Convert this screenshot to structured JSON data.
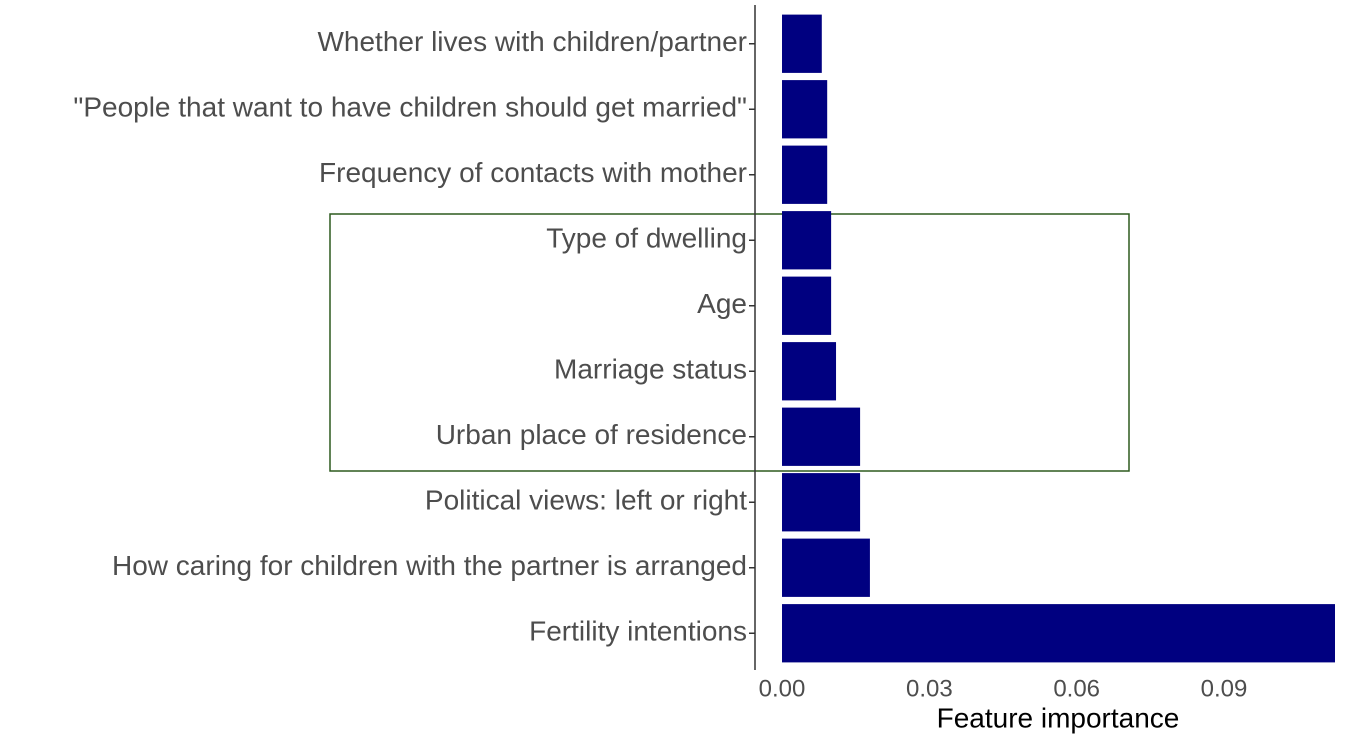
{
  "chart_data": {
    "type": "bar",
    "orientation": "horizontal",
    "x_label": "Feature importance",
    "categories": [
      "Whether lives with children/partner",
      "\"People that want to have children should get married\"",
      "Frequency of contacts with mother",
      "Type of dwelling",
      "Age",
      "Marriage status",
      "Urban place of residence",
      "Political views: left or right",
      "How caring for children with the partner is arranged",
      "Fertility intentions"
    ],
    "values": [
      0.0081,
      0.0092,
      0.0092,
      0.01,
      0.01,
      0.011,
      0.0159,
      0.0159,
      0.0179,
      0.1126
    ],
    "color": "#000080",
    "xlim": [
      -0.0055,
      0.1126
    ],
    "xticks": [
      {
        "value": 0,
        "label": "0.00"
      },
      {
        "value": 0.03,
        "label": "0.03"
      },
      {
        "value": 0.06,
        "label": "0.06"
      },
      {
        "value": 0.09,
        "label": "0.09"
      }
    ],
    "grid": false
  }
}
